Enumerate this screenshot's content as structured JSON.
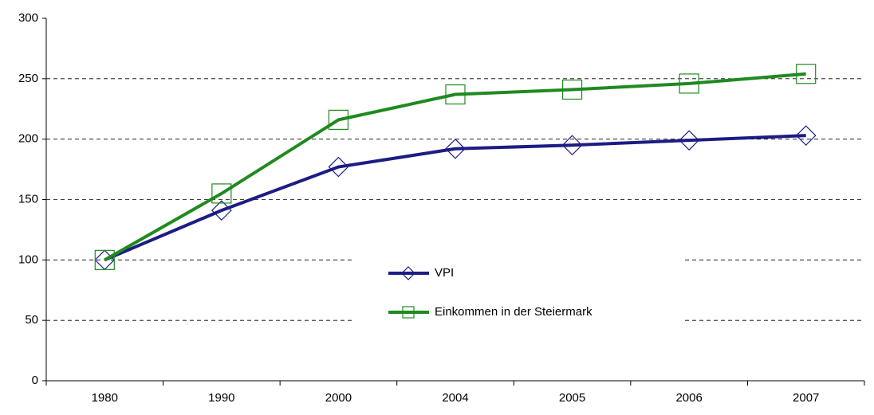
{
  "chart_data": {
    "type": "line",
    "categories": [
      "1980",
      "1990",
      "2000",
      "2004",
      "2005",
      "2006",
      "2007"
    ],
    "series": [
      {
        "name": "VPI",
        "color": "#1c1c84",
        "marker": "diamond",
        "values": [
          100,
          141,
          177,
          192,
          195,
          199,
          203
        ]
      },
      {
        "name": "Einkommen in der Steiermark",
        "color": "#1f8a1f",
        "marker": "square",
        "values": [
          100,
          155,
          216,
          237,
          241,
          246,
          254
        ]
      }
    ],
    "ylim": [
      0,
      300
    ],
    "yticks": [
      0,
      50,
      100,
      150,
      200,
      250,
      300
    ],
    "grid": true,
    "legend": "center"
  }
}
